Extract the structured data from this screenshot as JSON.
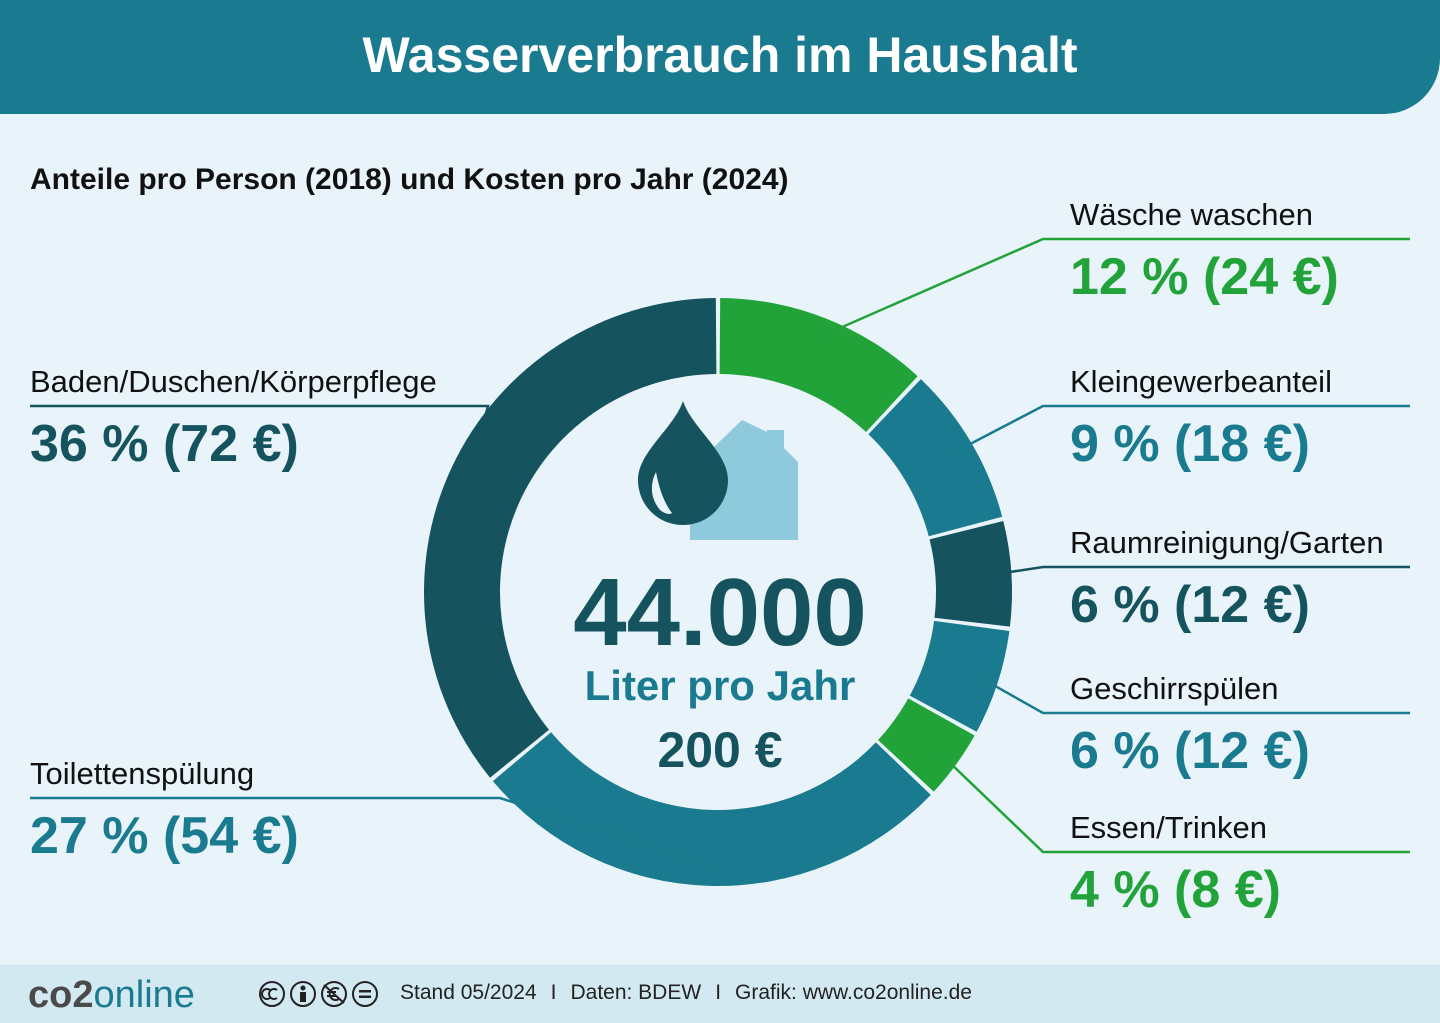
{
  "header": {
    "title": "Wasserverbrauch im Haushalt"
  },
  "subtitle": "Anteile pro Person (2018) und Kosten pro Jahr (2024)",
  "center": {
    "volume": "44.000",
    "unit": "Liter pro Jahr",
    "cost": "200 €"
  },
  "colors": {
    "dark_teal": "#15535f",
    "teal": "#1a7a8f",
    "green": "#21a33a",
    "house": "#8ecadb",
    "banner": "#1a7a8f",
    "background": "#e8f4f9"
  },
  "chart_data": {
    "type": "pie",
    "donut": true,
    "total_liters": 44000,
    "total_cost_eur": 200,
    "slices": [
      {
        "name": "Wäsche waschen",
        "percent": 12,
        "cost_eur": 24,
        "value_label": "12 % (24 €)",
        "color": "#21a33a"
      },
      {
        "name": "Kleingewerbeanteil",
        "percent": 9,
        "cost_eur": 18,
        "value_label": "9 % (18 €)",
        "color": "#1a7a8f"
      },
      {
        "name": "Raumreinigung/Garten",
        "percent": 6,
        "cost_eur": 12,
        "value_label": "6 % (12 €)",
        "color": "#15535f"
      },
      {
        "name": "Geschirrspülen",
        "percent": 6,
        "cost_eur": 12,
        "value_label": "6 % (12 €)",
        "color": "#1a7a8f"
      },
      {
        "name": "Essen/Trinken",
        "percent": 4,
        "cost_eur": 8,
        "value_label": "4 % (8 €)",
        "color": "#21a33a"
      },
      {
        "name": "Toilettenspülung",
        "percent": 27,
        "cost_eur": 54,
        "value_label": "27 % (54 €)",
        "color": "#1a7a8f"
      },
      {
        "name": "Baden/Duschen/Körperpflege",
        "percent": 36,
        "cost_eur": 72,
        "value_label": "36 % (72 €)",
        "color": "#15535f"
      }
    ]
  },
  "footer": {
    "logo_part1": "co2",
    "logo_part2": "online",
    "license_icons": [
      "cc-icon",
      "by-icon",
      "nc-icon",
      "nd-icon"
    ],
    "stand": "Stand 05/2024",
    "separator": "I",
    "daten": "Daten: BDEW",
    "grafik": "Grafik: www.co2online.de"
  }
}
